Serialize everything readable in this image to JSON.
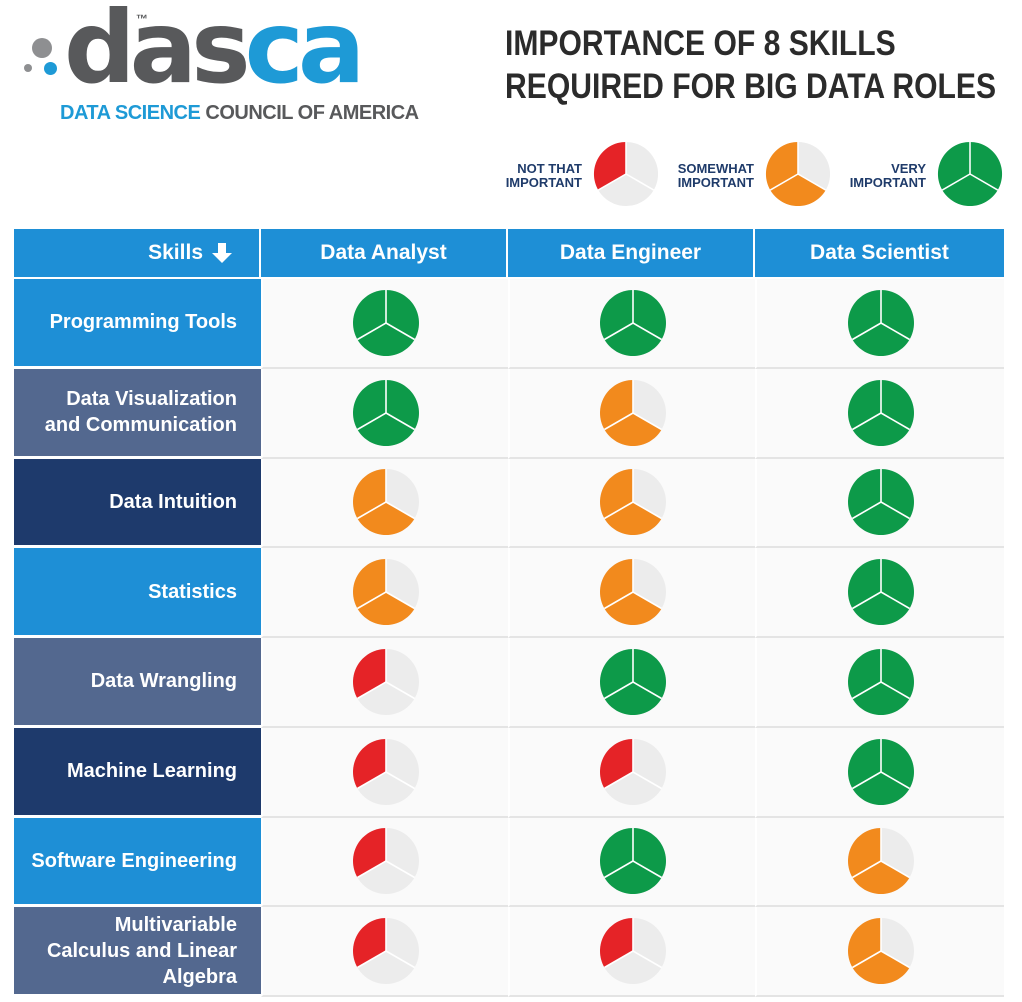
{
  "logo": {
    "word_gray": "das",
    "word_blue": "ca",
    "trademark": "™",
    "tagline_blue": "DATA SCIENCE",
    "tagline_gray": "COUNCIL OF AMERICA"
  },
  "title": {
    "line1": "IMPORTANCE OF 8 SKILLS",
    "line2": "REQUIRED FOR BIG DATA ROLES"
  },
  "legend": [
    {
      "line1": "NOT THAT",
      "line2": "IMPORTANT",
      "level": 1
    },
    {
      "line1": "SOMEWHAT",
      "line2": "IMPORTANT",
      "level": 2
    },
    {
      "line1": "VERY",
      "line2": "IMPORTANT",
      "level": 3
    }
  ],
  "colors": {
    "level1": "#e52327",
    "level2": "#f28a1d",
    "level3": "#0d9a49",
    "empty": "#ececec",
    "header_blue": "#1e8fd6",
    "row_light_blue": "#1e8fd6",
    "row_slate": "#53688f",
    "row_navy": "#1e3a6c"
  },
  "chart_data": {
    "type": "table",
    "max_level": 3,
    "corner_label": "Skills",
    "columns": [
      "Data Analyst",
      "Data Engineer",
      "Data Scientist"
    ],
    "rows": [
      {
        "skill": "Programming Tools",
        "band": "row_light_blue",
        "levels": [
          3,
          3,
          3
        ]
      },
      {
        "skill": "Data Visualization and Communication",
        "band": "row_slate",
        "levels": [
          3,
          2,
          3
        ]
      },
      {
        "skill": "Data Intuition",
        "band": "row_navy",
        "levels": [
          2,
          2,
          3
        ]
      },
      {
        "skill": "Statistics",
        "band": "row_light_blue",
        "levels": [
          2,
          2,
          3
        ]
      },
      {
        "skill": "Data Wrangling",
        "band": "row_slate",
        "levels": [
          1,
          3,
          3
        ]
      },
      {
        "skill": "Machine Learning",
        "band": "row_navy",
        "levels": [
          1,
          1,
          3
        ]
      },
      {
        "skill": "Software Engineering",
        "band": "row_light_blue",
        "levels": [
          1,
          3,
          2
        ]
      },
      {
        "skill": "Multivariable Calculus and Linear Algebra",
        "band": "row_slate",
        "levels": [
          1,
          1,
          2
        ]
      }
    ]
  }
}
